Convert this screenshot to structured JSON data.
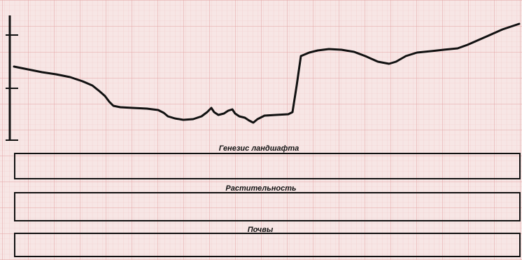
{
  "sheet": {
    "grid_major_color": "#e5a7a7",
    "grid_minor_color": "#f1cfcf",
    "background_color": "#f6e4e3",
    "profile_color": "#111111"
  },
  "profile": {
    "description": "Relief profile elevation curve",
    "y_axis_ticks": 3
  },
  "bands": [
    {
      "label": "Генезис ландшафта"
    },
    {
      "label": "Растительность"
    },
    {
      "label": "Почвы"
    }
  ]
}
